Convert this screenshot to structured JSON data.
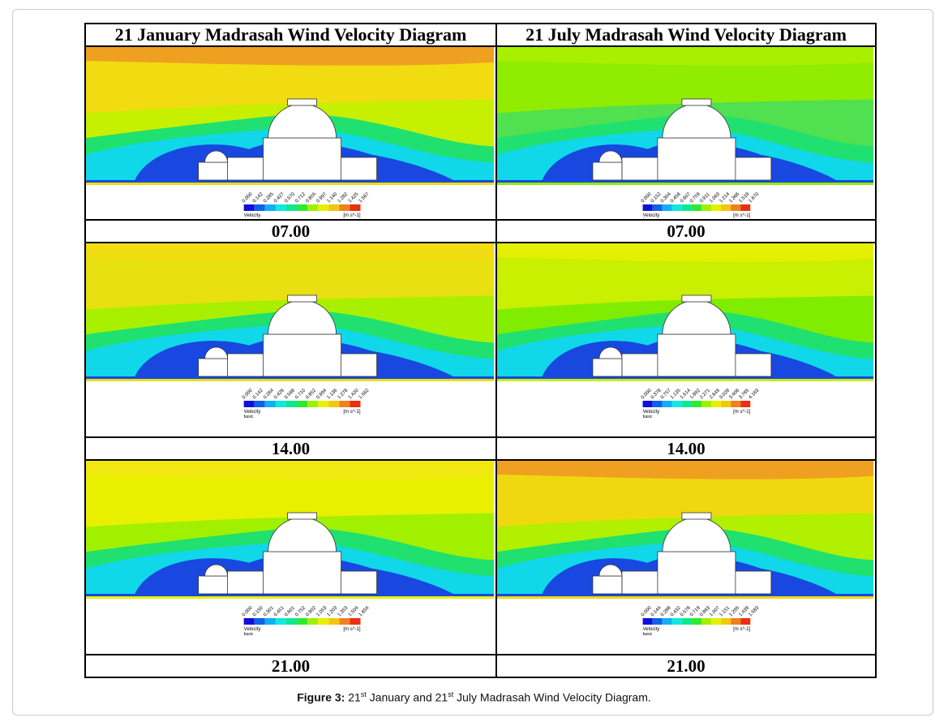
{
  "headers": {
    "january": "21 January Madrasah Wind Velocity Diagram",
    "july": "21 July Madrasah Wind Velocity Diagram"
  },
  "panels": [
    {
      "row": 0,
      "col": 0,
      "time": "07.00",
      "legend_label": "Velocity",
      "legend_sub": "",
      "unit": "[m s^-1]",
      "ticks": [
        "0.000",
        "0.142",
        "0.285",
        "0.427",
        "0.570",
        "0.712",
        "0.855",
        "0.997",
        "1.140",
        "1.282",
        "1.425",
        "1.567"
      ],
      "sky_top": "#f0a020",
      "sky_mid": "#f0dc10",
      "near": "#c6f000"
    },
    {
      "row": 0,
      "col": 1,
      "time": "07.00",
      "legend_label": "Velocity",
      "legend_sub": "basic",
      "unit": "[m s^-1]",
      "ticks": [
        "0.000",
        "0.152",
        "0.304",
        "0.456",
        "0.607",
        "0.759",
        "0.911",
        "1.063",
        "1.214",
        "1.366",
        "1.518",
        "1.670"
      ],
      "sky_top": "#a8f000",
      "sky_mid": "#90ec00",
      "near": "#50e050"
    },
    {
      "row": 1,
      "col": 0,
      "time": "14.00",
      "legend_label": "Velocity",
      "legend_sub": "basic",
      "unit": "[m s^-1]",
      "ticks": [
        "0.000",
        "0.142",
        "0.284",
        "0.426",
        "0.568",
        "0.710",
        "0.852",
        "0.994",
        "1.136",
        "1.278",
        "1.420",
        "1.562"
      ],
      "sky_top": "#f0dc10",
      "sky_mid": "#e8e010",
      "near": "#a8f000"
    },
    {
      "row": 1,
      "col": 1,
      "time": "14.00",
      "legend_label": "Velocity",
      "legend_sub": "basic",
      "unit": "[m s^-1]",
      "ticks": [
        "0.000",
        "0.378",
        "0.757",
        "1.135",
        "1.514",
        "1.892",
        "2.271",
        "2.649",
        "3.028",
        "3.406",
        "3.785",
        "4.163"
      ],
      "sky_top": "#e4f000",
      "sky_mid": "#c8f000",
      "near": "#80ec00"
    },
    {
      "row": 2,
      "col": 0,
      "time": "21.00",
      "legend_label": "Velocity",
      "legend_sub": "basic",
      "unit": "[m s^-1]",
      "ticks": [
        "0.000",
        "0.150",
        "0.301",
        "0.451",
        "0.601",
        "0.752",
        "0.902",
        "1.053",
        "1.203",
        "1.353",
        "1.504",
        "1.654"
      ],
      "sky_top": "#f0e810",
      "sky_mid": "#e8f000",
      "near": "#a0f000"
    },
    {
      "row": 2,
      "col": 1,
      "time": "21.00",
      "legend_label": "Velocity",
      "legend_sub": "basic",
      "unit": "[m s^-1]",
      "ticks": [
        "0.000",
        "0.144",
        "0.288",
        "0.432",
        "0.576",
        "0.719",
        "0.863",
        "1.007",
        "1.151",
        "1.295",
        "1.439",
        "1.583"
      ],
      "sky_top": "#f0a020",
      "sky_mid": "#f0d810",
      "near": "#b0f000"
    }
  ],
  "colors": {
    "legend": [
      "#1010d8",
      "#1060e8",
      "#10b0f0",
      "#10e8e0",
      "#10e890",
      "#30e830",
      "#a0f000",
      "#e8f000",
      "#f0c810",
      "#f08020",
      "#e83010"
    ],
    "blue": "#1848e0",
    "cyan": "#10d8e8",
    "green": "#20e070"
  },
  "caption": {
    "label": "Figure 3:",
    "text_parts": [
      "21",
      "st",
      " January and 21",
      "st",
      " July Madrasah Wind Velocity Diagram."
    ]
  }
}
